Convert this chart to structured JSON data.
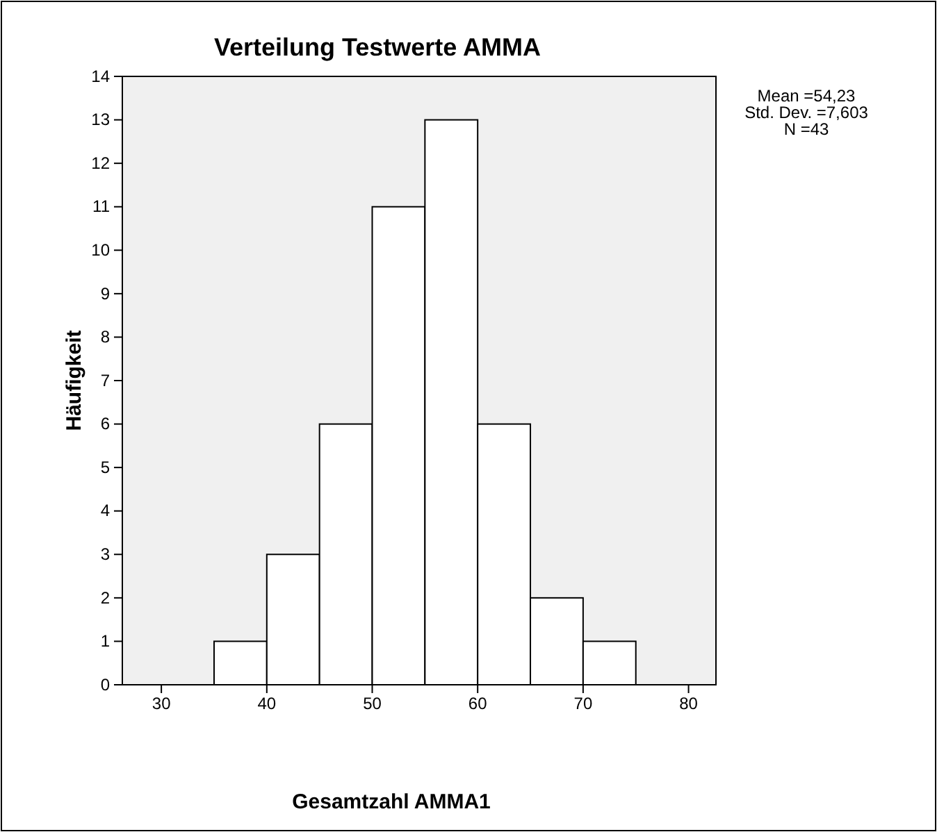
{
  "chart_data": {
    "type": "histogram",
    "title": "Verteilung Testwerte AMMA",
    "xlabel": "Gesamtzahl AMMA1",
    "ylabel": "Häufigkeit",
    "bins": [
      35,
      40,
      45,
      50,
      55,
      60,
      65,
      70,
      75
    ],
    "values": [
      1,
      3,
      6,
      11,
      13,
      6,
      2,
      1
    ],
    "color": "#ffffff",
    "xlim": [
      26.3,
      82.6
    ],
    "xticks": [
      30,
      40,
      50,
      60,
      70,
      80
    ],
    "ylim": [
      0,
      14
    ],
    "yticks": [
      0,
      1,
      2,
      3,
      4,
      5,
      6,
      7,
      8,
      9,
      10,
      11,
      12,
      13,
      14
    ],
    "grid": false,
    "annotations": [
      "Mean =54,23",
      "Std. Dev. =7,603",
      "N =43"
    ]
  }
}
